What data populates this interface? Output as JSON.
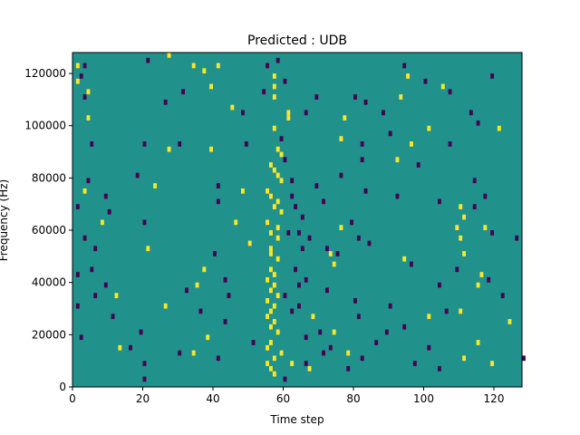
{
  "chart_data": {
    "type": "heatmap",
    "title": "Predicted : UDB",
    "xlabel": "Time step",
    "ylabel": "Frequency (Hz)",
    "xlim": [
      0,
      128
    ],
    "ylim": [
      0,
      128000
    ],
    "x_ticks": [
      0,
      20,
      40,
      60,
      80,
      100,
      120
    ],
    "y_ticks": [
      0,
      20000,
      40000,
      60000,
      80000,
      100000,
      120000
    ],
    "grid": false,
    "colors": {
      "background": "#21918c",
      "high": "#fde725",
      "low": "#440154"
    },
    "cell": {
      "dt": 1,
      "df": 2000
    },
    "high_cells": [
      [
        27,
        126000
      ],
      [
        1,
        122000
      ],
      [
        34,
        122000
      ],
      [
        41,
        122000
      ],
      [
        37,
        120000
      ],
      [
        57,
        118000
      ],
      [
        95,
        118000
      ],
      [
        1,
        116000
      ],
      [
        39,
        114000
      ],
      [
        57,
        114000
      ],
      [
        105,
        114000
      ],
      [
        4,
        112000
      ],
      [
        57,
        110000
      ],
      [
        93,
        110000
      ],
      [
        45,
        106000
      ],
      [
        61,
        104000
      ],
      [
        4,
        102000
      ],
      [
        61,
        102000
      ],
      [
        77,
        102000
      ],
      [
        57,
        98000
      ],
      [
        101,
        98000
      ],
      [
        121,
        98000
      ],
      [
        76,
        94000
      ],
      [
        96,
        92000
      ],
      [
        27,
        90000
      ],
      [
        39,
        90000
      ],
      [
        58,
        90000
      ],
      [
        59,
        88000
      ],
      [
        92,
        86000
      ],
      [
        56,
        84000
      ],
      [
        57,
        82000
      ],
      [
        58,
        80000
      ],
      [
        59,
        78000
      ],
      [
        23,
        76000
      ],
      [
        3,
        74000
      ],
      [
        48,
        74000
      ],
      [
        55,
        74000
      ],
      [
        56,
        72000
      ],
      [
        58,
        70000
      ],
      [
        57,
        68000
      ],
      [
        110,
        68000
      ],
      [
        59,
        66000
      ],
      [
        111,
        64000
      ],
      [
        8,
        62000
      ],
      [
        46,
        62000
      ],
      [
        55,
        62000
      ],
      [
        58,
        60000
      ],
      [
        76,
        60000
      ],
      [
        109,
        60000
      ],
      [
        117,
        60000
      ],
      [
        56,
        58000
      ],
      [
        58,
        56000
      ],
      [
        110,
        56000
      ],
      [
        50,
        54000
      ],
      [
        56,
        52000
      ],
      [
        21,
        52000
      ],
      [
        56,
        50000
      ],
      [
        73,
        50000
      ],
      [
        111,
        50000
      ],
      [
        58,
        48000
      ],
      [
        94,
        48000
      ],
      [
        74,
        46000
      ],
      [
        56,
        44000
      ],
      [
        37,
        44000
      ],
      [
        57,
        42000
      ],
      [
        116,
        42000
      ],
      [
        55,
        40000
      ],
      [
        35,
        38000
      ],
      [
        57,
        38000
      ],
      [
        115,
        38000
      ],
      [
        56,
        36000
      ],
      [
        12,
        34000
      ],
      [
        58,
        34000
      ],
      [
        55,
        32000
      ],
      [
        26,
        30000
      ],
      [
        57,
        30000
      ],
      [
        56,
        28000
      ],
      [
        110,
        28000
      ],
      [
        55,
        26000
      ],
      [
        68,
        26000
      ],
      [
        101,
        26000
      ],
      [
        57,
        24000
      ],
      [
        124,
        24000
      ],
      [
        56,
        22000
      ],
      [
        58,
        20000
      ],
      [
        74,
        20000
      ],
      [
        38,
        18000
      ],
      [
        56,
        16000
      ],
      [
        115,
        16000
      ],
      [
        55,
        14000
      ],
      [
        13,
        14000
      ],
      [
        59,
        12000
      ],
      [
        34,
        12000
      ],
      [
        78,
        12000
      ],
      [
        57,
        10000
      ],
      [
        111,
        10000
      ],
      [
        55,
        8000
      ],
      [
        62,
        8000
      ],
      [
        119,
        8000
      ],
      [
        56,
        6000
      ],
      [
        67,
        6000
      ],
      [
        57,
        4000
      ]
    ],
    "low_cells": [
      [
        21,
        124000
      ],
      [
        58,
        124000
      ],
      [
        3,
        122000
      ],
      [
        55,
        122000
      ],
      [
        94,
        122000
      ],
      [
        2,
        118000
      ],
      [
        119,
        118000
      ],
      [
        60,
        116000
      ],
      [
        100,
        116000
      ],
      [
        31,
        112000
      ],
      [
        54,
        112000
      ],
      [
        107,
        112000
      ],
      [
        3,
        110000
      ],
      [
        69,
        110000
      ],
      [
        80,
        110000
      ],
      [
        26,
        108000
      ],
      [
        83,
        108000
      ],
      [
        48,
        104000
      ],
      [
        66,
        104000
      ],
      [
        88,
        104000
      ],
      [
        113,
        104000
      ],
      [
        115,
        100000
      ],
      [
        90,
        96000
      ],
      [
        59,
        94000
      ],
      [
        5,
        92000
      ],
      [
        20,
        92000
      ],
      [
        30,
        92000
      ],
      [
        49,
        92000
      ],
      [
        82,
        92000
      ],
      [
        107,
        92000
      ],
      [
        60,
        86000
      ],
      [
        82,
        86000
      ],
      [
        98,
        84000
      ],
      [
        18,
        80000
      ],
      [
        76,
        80000
      ],
      [
        4,
        78000
      ],
      [
        62,
        78000
      ],
      [
        114,
        78000
      ],
      [
        41,
        76000
      ],
      [
        69,
        76000
      ],
      [
        83,
        74000
      ],
      [
        9,
        72000
      ],
      [
        62,
        72000
      ],
      [
        92,
        72000
      ],
      [
        117,
        72000
      ],
      [
        41,
        70000
      ],
      [
        71,
        70000
      ],
      [
        104,
        70000
      ],
      [
        1,
        68000
      ],
      [
        63,
        68000
      ],
      [
        114,
        68000
      ],
      [
        10,
        66000
      ],
      [
        65,
        64000
      ],
      [
        20,
        62000
      ],
      [
        79,
        62000
      ],
      [
        61,
        58000
      ],
      [
        64,
        58000
      ],
      [
        119,
        58000
      ],
      [
        3,
        56000
      ],
      [
        67,
        56000
      ],
      [
        81,
        56000
      ],
      [
        126,
        56000
      ],
      [
        84,
        54000
      ],
      [
        6,
        52000
      ],
      [
        65,
        52000
      ],
      [
        72,
        52000
      ],
      [
        40,
        50000
      ],
      [
        75,
        50000
      ],
      [
        96,
        46000
      ],
      [
        5,
        44000
      ],
      [
        63,
        44000
      ],
      [
        109,
        44000
      ],
      [
        1,
        42000
      ],
      [
        43,
        40000
      ],
      [
        66,
        40000
      ],
      [
        118,
        40000
      ],
      [
        9,
        38000
      ],
      [
        64,
        38000
      ],
      [
        104,
        38000
      ],
      [
        32,
        36000
      ],
      [
        72,
        36000
      ],
      [
        6,
        34000
      ],
      [
        44,
        34000
      ],
      [
        60,
        34000
      ],
      [
        122,
        34000
      ],
      [
        80,
        32000
      ],
      [
        1,
        30000
      ],
      [
        64,
        30000
      ],
      [
        90,
        30000
      ],
      [
        36,
        28000
      ],
      [
        62,
        28000
      ],
      [
        106,
        28000
      ],
      [
        11,
        26000
      ],
      [
        81,
        26000
      ],
      [
        43,
        24000
      ],
      [
        94,
        22000
      ],
      [
        19,
        20000
      ],
      [
        70,
        20000
      ],
      [
        89,
        20000
      ],
      [
        2,
        18000
      ],
      [
        66,
        18000
      ],
      [
        51,
        16000
      ],
      [
        86,
        16000
      ],
      [
        16,
        14000
      ],
      [
        73,
        14000
      ],
      [
        101,
        14000
      ],
      [
        30,
        12000
      ],
      [
        71,
        12000
      ],
      [
        41,
        10000
      ],
      [
        82,
        10000
      ],
      [
        128,
        10000
      ],
      [
        20,
        8000
      ],
      [
        66,
        8000
      ],
      [
        97,
        8000
      ],
      [
        104,
        6000
      ],
      [
        78,
        6000
      ],
      [
        20,
        2000
      ],
      [
        60,
        2000
      ]
    ]
  }
}
